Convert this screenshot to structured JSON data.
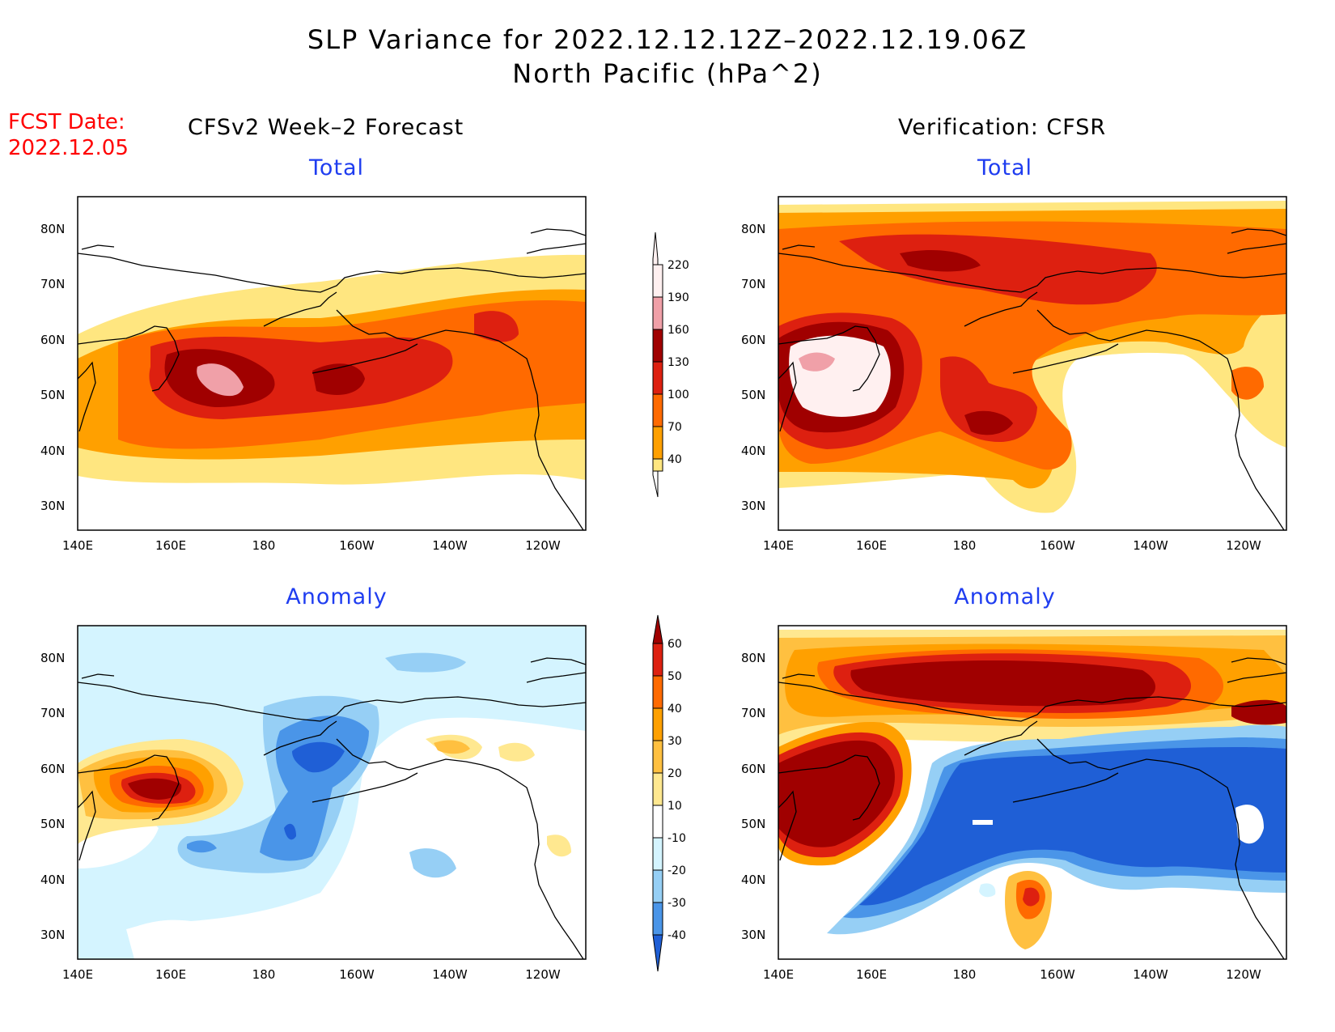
{
  "header": {
    "title_line1": "SLP Variance for 2022.12.12.12Z–2022.12.19.06Z",
    "title_line2": "North Pacific (hPa^2)"
  },
  "fcst": {
    "line1": "FCST Date:",
    "line2": "2022.12.05"
  },
  "columns": {
    "left_title": "CFSv2 Week–2 Forecast",
    "right_title": "Verification: CFSR"
  },
  "panels": {
    "top_left_label": "Total",
    "top_right_label": "Total",
    "bottom_left_label": "Anomaly",
    "bottom_right_label": "Anomaly"
  },
  "axes": {
    "lat_labels": [
      "80N",
      "70N",
      "60N",
      "50N",
      "40N",
      "30N"
    ],
    "lon_labels": [
      "140E",
      "160E",
      "180",
      "160W",
      "140W",
      "120W"
    ]
  },
  "colorbars": {
    "total": {
      "labels": [
        "220",
        "190",
        "160",
        "130",
        "100",
        "70",
        "40"
      ],
      "colors": [
        "#fff0f0",
        "#f0a0a8",
        "#a00000",
        "#dd2010",
        "#ff6a00",
        "#ffa000",
        "#ffe680"
      ]
    },
    "anomaly": {
      "labels": [
        "60",
        "50",
        "40",
        "30",
        "20",
        "10",
        "-10",
        "-20",
        "-30",
        "-40"
      ],
      "colors": [
        "#a00000",
        "#dd2010",
        "#ff6a00",
        "#ffa000",
        "#ffc040",
        "#ffe890",
        "#ffffff",
        "#d4f4ff",
        "#96cff5",
        "#4a95e8",
        "#1f5fd6"
      ]
    }
  },
  "colors": {
    "fcst_red": "#ff0000",
    "label_blue": "#1f3df0"
  }
}
